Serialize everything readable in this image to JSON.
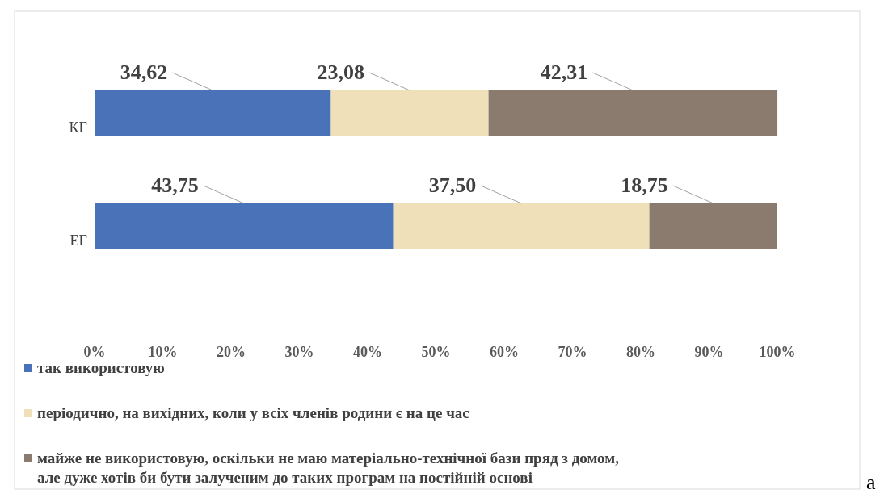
{
  "chart_data": {
    "type": "bar",
    "orientation": "horizontal",
    "stacked": true,
    "categories": [
      "КГ",
      "ЕГ"
    ],
    "series": [
      {
        "name": "так використовую",
        "color": "#4a72b8",
        "values": [
          34.62,
          43.75
        ],
        "value_labels": [
          "34,62",
          "43,75"
        ]
      },
      {
        "name": "періодично, на вихідних, коли у всіх членів родини є на це час",
        "color": "#efe0b9",
        "values": [
          23.08,
          37.5
        ],
        "value_labels": [
          "23,08",
          "37,50"
        ]
      },
      {
        "name": "майже не використовую, оскільки не маю матеріально-технічної бази пряд з домом, але дуже хотів би бути залученим до таких програм на постійній основі",
        "color": "#8a7b6e",
        "values": [
          42.31,
          18.75
        ],
        "value_labels": [
          "42,31",
          "18,75"
        ]
      }
    ],
    "xlim": [
      0,
      100
    ],
    "xticks": [
      {
        "value": 0,
        "label": "0%"
      },
      {
        "value": 10,
        "label": "10%"
      },
      {
        "value": 20,
        "label": "20%"
      },
      {
        "value": 30,
        "label": "30%"
      },
      {
        "value": 40,
        "label": "40%"
      },
      {
        "value": 50,
        "label": "50%"
      },
      {
        "value": 60,
        "label": "60%"
      },
      {
        "value": 70,
        "label": "70%"
      },
      {
        "value": 80,
        "label": "80%"
      },
      {
        "value": 90,
        "label": "90%"
      },
      {
        "value": 100,
        "label": "100%"
      }
    ],
    "grid": false,
    "legend": "bottom",
    "annotations": [
      "а"
    ]
  }
}
